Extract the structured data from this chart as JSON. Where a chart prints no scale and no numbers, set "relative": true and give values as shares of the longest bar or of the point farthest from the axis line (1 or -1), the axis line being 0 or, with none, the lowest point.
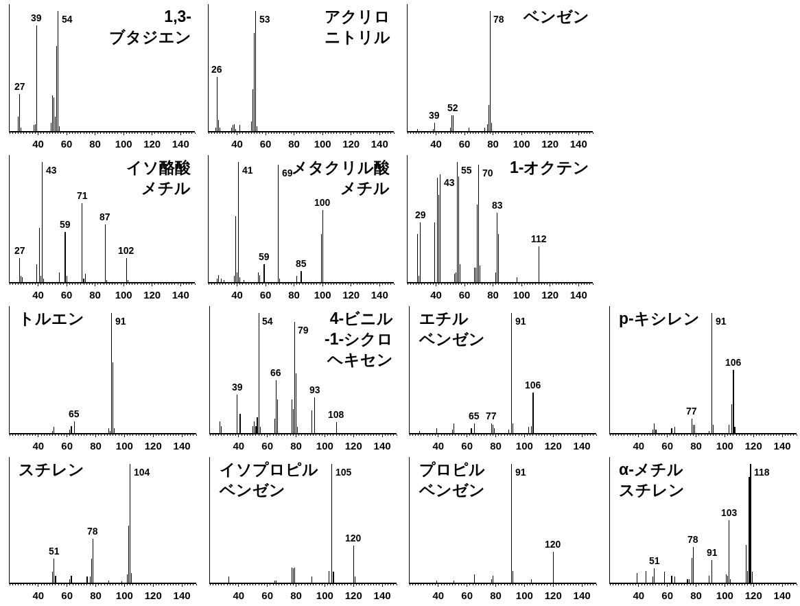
{
  "chart_data": [
    {
      "type": "bar",
      "title": "1,3-ブタジエン",
      "relative": true,
      "color": "#000000",
      "xlim": [
        20,
        150
      ],
      "xticks": [
        40,
        60,
        80,
        100,
        120,
        140
      ],
      "x": [
        26,
        27,
        28,
        37,
        38,
        39,
        49,
        50,
        51,
        52,
        53,
        54,
        55
      ],
      "values": [
        0.12,
        0.31,
        0.03,
        0.05,
        0.06,
        0.88,
        0.07,
        0.3,
        0.28,
        0.12,
        0.71,
        1,
        0.04
      ],
      "annotations": [
        {
          "text": "27",
          "x": 27,
          "y": 0.31
        },
        {
          "text": "39",
          "x": 39,
          "y": 0.88
        },
        {
          "text": "54",
          "x": 54,
          "y": 1
        }
      ]
    },
    {
      "type": "bar",
      "title": "アクリロニトリル",
      "relative": true,
      "color": "#000000",
      "xlim": [
        20,
        150
      ],
      "xticks": [
        40,
        60,
        80,
        100,
        120,
        140
      ],
      "x": [
        25,
        26,
        27,
        28,
        36,
        37,
        38,
        39,
        42,
        50,
        51,
        52,
        53,
        54
      ],
      "values": [
        0.03,
        0.45,
        0.09,
        0.03,
        0.03,
        0.05,
        0.06,
        0.02,
        0.05,
        0.08,
        0.35,
        0.82,
        1,
        0.04
      ],
      "annotations": [
        {
          "text": "26",
          "x": 26,
          "y": 0.45
        },
        {
          "text": "53",
          "x": 53,
          "y": 1
        }
      ]
    },
    {
      "type": "bar",
      "title": "ベンゼン",
      "relative": true,
      "color": "#000000",
      "xlim": [
        20,
        150
      ],
      "xticks": [
        40,
        60,
        80,
        100,
        120,
        140
      ],
      "x": [
        27,
        38,
        39,
        50,
        51,
        52,
        63,
        74,
        76,
        77,
        78,
        79
      ],
      "values": [
        0.02,
        0.02,
        0.07,
        0.03,
        0.13,
        0.13,
        0.03,
        0.03,
        0.06,
        0.22,
        1,
        0.07
      ],
      "annotations": [
        {
          "text": "39",
          "x": 39,
          "y": 0.07
        },
        {
          "text": "52",
          "x": 52,
          "y": 0.13
        },
        {
          "text": "78",
          "x": 78,
          "y": 1
        }
      ]
    },
    {
      "type": "bar",
      "title": "イソ酪酸メチル",
      "relative": true,
      "color": "#000000",
      "xlim": [
        20,
        150
      ],
      "xticks": [
        40,
        60,
        80,
        100,
        120,
        140
      ],
      "x": [
        27,
        28,
        29,
        39,
        41,
        42,
        43,
        44,
        55,
        59,
        60,
        71,
        72,
        73,
        87,
        88,
        102,
        103
      ],
      "values": [
        0.2,
        0.05,
        0.04,
        0.15,
        0.45,
        0.05,
        1,
        0.03,
        0.08,
        0.42,
        0.05,
        0.66,
        0.03,
        0.07,
        0.48,
        0.02,
        0.2,
        0.02
      ],
      "annotations": [
        {
          "text": "27",
          "x": 27,
          "y": 0.2
        },
        {
          "text": "43",
          "x": 43,
          "y": 1
        },
        {
          "text": "59",
          "x": 59,
          "y": 0.42
        },
        {
          "text": "71",
          "x": 71,
          "y": 0.66
        },
        {
          "text": "87",
          "x": 87,
          "y": 0.48
        },
        {
          "text": "102",
          "x": 102,
          "y": 0.2
        }
      ]
    },
    {
      "type": "bar",
      "title": "メタクリル酸メチル",
      "relative": true,
      "color": "#000000",
      "xlim": [
        20,
        150
      ],
      "xticks": [
        40,
        60,
        80,
        100,
        120,
        140
      ],
      "x": [
        26,
        27,
        29,
        31,
        38,
        39,
        40,
        41,
        42,
        45,
        55,
        56,
        59,
        69,
        70,
        82,
        85,
        99,
        100
      ],
      "values": [
        0.03,
        0.06,
        0.03,
        0.02,
        0.05,
        0.55,
        0.08,
        1,
        0.04,
        0.02,
        0.08,
        0.06,
        0.15,
        0.98,
        0.03,
        0.05,
        0.09,
        0.4,
        0.6
      ],
      "annotations": [
        {
          "text": "41",
          "x": 41,
          "y": 1
        },
        {
          "text": "59",
          "x": 59,
          "y": 0.15
        },
        {
          "text": "69",
          "x": 69,
          "y": 0.98
        },
        {
          "text": "85",
          "x": 85,
          "y": 0.09
        },
        {
          "text": "100",
          "x": 100,
          "y": 0.6
        }
      ]
    },
    {
      "type": "bar",
      "title": "1-オクテン",
      "relative": true,
      "color": "#000000",
      "xlim": [
        20,
        150
      ],
      "xticks": [
        40,
        60,
        80,
        100,
        120,
        140
      ],
      "x": [
        27,
        28,
        29,
        39,
        41,
        42,
        43,
        53,
        54,
        55,
        56,
        57,
        67,
        68,
        69,
        70,
        71,
        82,
        83,
        84,
        97,
        112
      ],
      "values": [
        0.4,
        0.05,
        0.5,
        0.5,
        0.87,
        0.73,
        0.9,
        0.07,
        0.08,
        1,
        0.88,
        0.15,
        0.12,
        0.12,
        0.65,
        0.98,
        0.14,
        0.08,
        0.58,
        0.4,
        0.04,
        0.3
      ],
      "annotations": [
        {
          "text": "29",
          "x": 29,
          "y": 0.5
        },
        {
          "text": "43",
          "x": 43,
          "y": 0.9
        },
        {
          "text": "55",
          "x": 55,
          "y": 1
        },
        {
          "text": "70",
          "x": 70,
          "y": 0.98
        },
        {
          "text": "83",
          "x": 83,
          "y": 0.58
        },
        {
          "text": "112",
          "x": 112,
          "y": 0.3
        }
      ]
    },
    {
      "type": "bar",
      "title": "トルエン",
      "relative": true,
      "color": "#000000",
      "xlim": [
        20,
        150
      ],
      "xticks": [
        40,
        60,
        80,
        100,
        120,
        140
      ],
      "x": [
        50,
        51,
        62,
        63,
        65,
        89,
        90,
        91,
        92,
        93
      ],
      "values": [
        0.02,
        0.05,
        0.03,
        0.06,
        0.1,
        0.04,
        0.02,
        1,
        0.59,
        0.04
      ],
      "annotations": [
        {
          "text": "65",
          "x": 65,
          "y": 0.1
        },
        {
          "text": "91",
          "x": 91,
          "y": 1
        }
      ]
    },
    {
      "type": "bar",
      "title": "4-ビニル-1-シクロヘキセン",
      "relative": true,
      "color": "#000000",
      "xlim": [
        20,
        150
      ],
      "xticks": [
        40,
        60,
        80,
        100,
        120,
        140
      ],
      "x": [
        27,
        28,
        39,
        41,
        50,
        51,
        52,
        53,
        54,
        55,
        65,
        66,
        67,
        77,
        78,
        79,
        80,
        81,
        91,
        93,
        108
      ],
      "values": [
        0.1,
        0.06,
        0.32,
        0.16,
        0.06,
        0.1,
        0.06,
        0.13,
        1,
        0.05,
        0.12,
        0.44,
        0.28,
        0.28,
        0.2,
        0.93,
        0.5,
        0.05,
        0.19,
        0.3,
        0.09
      ],
      "annotations": [
        {
          "text": "39",
          "x": 39,
          "y": 0.32
        },
        {
          "text": "54",
          "x": 54,
          "y": 1
        },
        {
          "text": "66",
          "x": 66,
          "y": 0.44
        },
        {
          "text": "79",
          "x": 79,
          "y": 0.93
        },
        {
          "text": "93",
          "x": 93,
          "y": 0.3
        },
        {
          "text": "108",
          "x": 108,
          "y": 0.09
        }
      ]
    },
    {
      "type": "bar",
      "title": "エチルベンゼン",
      "relative": true,
      "color": "#000000",
      "xlim": [
        20,
        150
      ],
      "xticks": [
        40,
        60,
        80,
        100,
        120,
        140
      ],
      "x": [
        27,
        39,
        50,
        51,
        63,
        65,
        77,
        78,
        79,
        89,
        91,
        92,
        103,
        105,
        106
      ],
      "values": [
        0.02,
        0.04,
        0.03,
        0.08,
        0.04,
        0.08,
        0.08,
        0.07,
        0.04,
        0.03,
        1,
        0.08,
        0.05,
        0.06,
        0.34
      ],
      "annotations": [
        {
          "text": "65",
          "x": 65,
          "y": 0.08
        },
        {
          "text": "77",
          "x": 77,
          "y": 0.08
        },
        {
          "text": "91",
          "x": 91,
          "y": 1
        },
        {
          "text": "106",
          "x": 106,
          "y": 0.34
        }
      ]
    },
    {
      "type": "bar",
      "title": "p-キシレン",
      "relative": true,
      "color": "#000000",
      "xlim": [
        20,
        150
      ],
      "xticks": [
        40,
        60,
        80,
        100,
        120,
        140
      ],
      "x": [
        50,
        51,
        52,
        63,
        65,
        77,
        78,
        79,
        89,
        91,
        92,
        103,
        105,
        106,
        107
      ],
      "values": [
        0.03,
        0.08,
        0.03,
        0.04,
        0.05,
        0.12,
        0.07,
        0.07,
        0.02,
        1,
        0.07,
        0.07,
        0.24,
        0.53,
        0.05
      ],
      "annotations": [
        {
          "text": "77",
          "x": 77,
          "y": 0.12
        },
        {
          "text": "91",
          "x": 91,
          "y": 1
        },
        {
          "text": "106",
          "x": 106,
          "y": 0.53
        }
      ]
    },
    {
      "type": "bar",
      "title": "スチレン",
      "relative": true,
      "color": "#000000",
      "xlim": [
        20,
        150
      ],
      "xticks": [
        40,
        60,
        80,
        100,
        120,
        140
      ],
      "x": [
        50,
        51,
        52,
        62,
        63,
        74,
        76,
        77,
        78,
        89,
        98,
        102,
        103,
        104,
        105
      ],
      "values": [
        0.09,
        0.2,
        0.06,
        0.03,
        0.06,
        0.05,
        0.05,
        0.2,
        0.37,
        0.02,
        0.01,
        0.07,
        0.48,
        1,
        0.08
      ],
      "annotations": [
        {
          "text": "51",
          "x": 51,
          "y": 0.2
        },
        {
          "text": "78",
          "x": 78,
          "y": 0.37
        },
        {
          "text": "104",
          "x": 104,
          "y": 1
        }
      ]
    },
    {
      "type": "bar",
      "title": "イソプロピルベンゼン",
      "relative": true,
      "color": "#000000",
      "xlim": [
        20,
        150
      ],
      "xticks": [
        40,
        60,
        80,
        100,
        120,
        140
      ],
      "x": [
        33,
        65,
        66,
        77,
        78,
        79,
        91,
        103,
        105,
        106,
        120,
        121
      ],
      "values": [
        0.05,
        0.02,
        0.02,
        0.13,
        0.12,
        0.13,
        0.05,
        0.1,
        1,
        0.09,
        0.31,
        0.05
      ],
      "annotations": [
        {
          "text": "105",
          "x": 105,
          "y": 1
        },
        {
          "text": "120",
          "x": 120,
          "y": 0.31
        }
      ]
    },
    {
      "type": "bar",
      "title": "プロピルベンゼン",
      "relative": true,
      "color": "#000000",
      "xlim": [
        20,
        150
      ],
      "xticks": [
        40,
        60,
        80,
        100,
        120,
        140
      ],
      "x": [
        39,
        51,
        65,
        77,
        78,
        91,
        92,
        105,
        120
      ],
      "values": [
        0.02,
        0.02,
        0.07,
        0.03,
        0.06,
        1,
        0.1,
        0.03,
        0.26
      ],
      "annotations": [
        {
          "text": "91",
          "x": 91,
          "y": 1
        },
        {
          "text": "120",
          "x": 120,
          "y": 0.26
        }
      ]
    },
    {
      "type": "bar",
      "title": "α-メチルスチレン",
      "relative": true,
      "color": "#000000",
      "xlim": [
        20,
        150
      ],
      "xticks": [
        40,
        60,
        80,
        100,
        120,
        140
      ],
      "x": [
        39,
        45,
        50,
        51,
        58,
        63,
        65,
        74,
        75,
        77,
        78,
        89,
        91,
        101,
        102,
        103,
        104,
        115,
        116,
        117,
        118,
        119
      ],
      "values": [
        0.08,
        0.1,
        0.05,
        0.12,
        0.09,
        0.06,
        0.05,
        0.03,
        0.03,
        0.21,
        0.3,
        0.06,
        0.19,
        0.07,
        0.06,
        0.53,
        0.03,
        0.32,
        0.1,
        0.89,
        1,
        0.09
      ],
      "annotations": [
        {
          "text": "51",
          "x": 51,
          "y": 0.12
        },
        {
          "text": "78",
          "x": 78,
          "y": 0.3
        },
        {
          "text": "91",
          "x": 91,
          "y": 0.19
        },
        {
          "text": "103",
          "x": 103,
          "y": 0.53
        },
        {
          "text": "118",
          "x": 118,
          "y": 1
        }
      ]
    }
  ]
}
